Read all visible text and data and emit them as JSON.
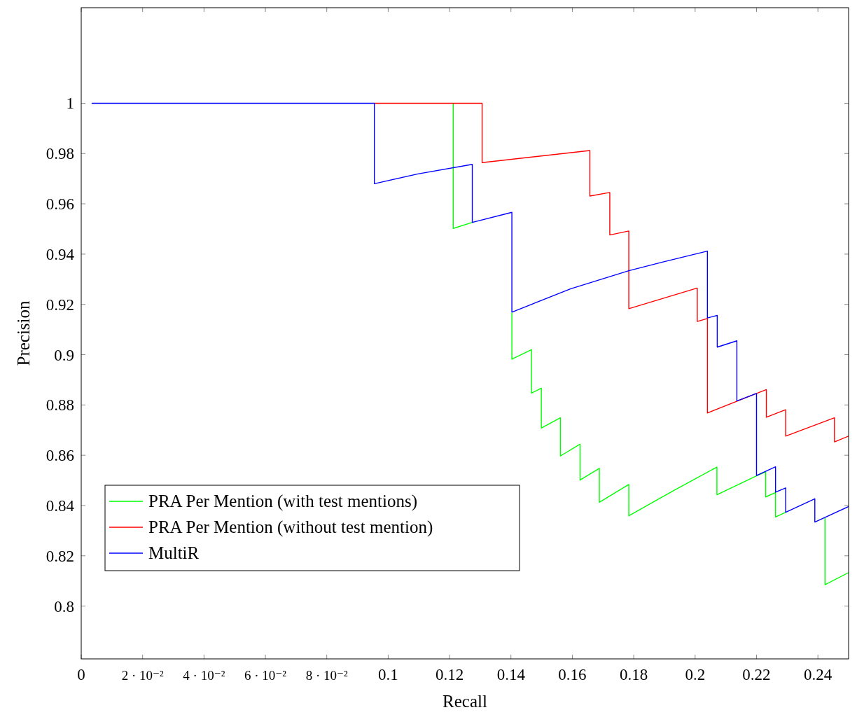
{
  "chart_data": {
    "type": "line",
    "xlabel": "Recall",
    "ylabel": "Precision",
    "xlim": [
      0,
      0.25
    ],
    "ylim": [
      0.779,
      1.038
    ],
    "xticks": [
      0,
      {
        "value": 0.02,
        "label": "2 · 10⁻²"
      },
      {
        "value": 0.04,
        "label": "4 · 10⁻²"
      },
      {
        "value": 0.06,
        "label": "6 · 10⁻²"
      },
      {
        "value": 0.08,
        "label": "8 · 10⁻²"
      },
      0.1,
      0.12,
      0.14,
      0.16,
      0.18,
      0.2,
      0.22,
      0.24
    ],
    "yticks": [
      0.8,
      0.82,
      0.84,
      0.86,
      0.88,
      0.9,
      0.92,
      0.94,
      0.96,
      0.98,
      1
    ],
    "grid": false,
    "legend": "bottom left",
    "marker": "none",
    "line_style": "solid",
    "series": [
      {
        "name": "PRA Per Mention (with test mentions)",
        "color": "#00ff00",
        "x": [
          0.1212,
          0.1212,
          0.1274,
          null,
          0.1403,
          0.1403,
          0.1467,
          0.1467,
          0.1499,
          0.1499,
          0.1561,
          0.1561,
          0.1625,
          0.1625,
          0.1688,
          0.1688,
          0.1784,
          0.1784,
          0.1928,
          0.2071,
          0.2071,
          0.22,
          0.223,
          0.223,
          0.2262,
          0.2262,
          0.2295,
          null,
          null,
          0.2423,
          0.2423,
          0.25
        ],
        "values": [
          1,
          0.9502,
          0.9526,
          null,
          0.9167,
          0.8982,
          0.902,
          0.8847,
          0.8867,
          0.8708,
          0.8749,
          0.8597,
          0.8644,
          0.8501,
          0.8548,
          0.8413,
          0.8484,
          0.8359,
          0.8458,
          0.8553,
          0.8443,
          0.8518,
          0.8534,
          0.8434,
          0.8452,
          0.8354,
          0.8373,
          null,
          null,
          0.8351,
          0.8085,
          0.8133
        ]
      },
      {
        "name": "PRA Per Mention (without test mention)",
        "color": "#ff0000",
        "x": [
          0.0955,
          0.1306,
          0.1306,
          0.1657,
          0.1657,
          0.1722,
          0.1722,
          0.1784,
          0.1784,
          0.2007,
          0.2007,
          0.204,
          0.204,
          0.2232,
          0.2232,
          0.2295,
          0.2295,
          0.2454,
          0.2454,
          0.25
        ],
        "values": [
          1,
          1,
          0.9764,
          0.9812,
          0.9631,
          0.9645,
          0.9476,
          0.9492,
          0.9183,
          0.9265,
          0.9132,
          0.9144,
          0.8768,
          0.8861,
          0.8751,
          0.8781,
          0.8676,
          0.8749,
          0.8653,
          0.8676
        ]
      },
      {
        "name": "MultiR",
        "color": "#0000ff",
        "x": [
          0.0034,
          0.0955,
          0.0955,
          0.1097,
          0.1274,
          0.1274,
          0.1403,
          0.1403,
          0.1595,
          0.1784,
          0.19,
          0.204,
          0.204,
          0.2072,
          0.2072,
          0.2136,
          0.2136,
          0.22,
          0.22,
          0.2262,
          0.2262,
          0.2295,
          0.2295,
          0.239,
          0.239,
          0.25
        ],
        "values": [
          1,
          1,
          0.968,
          0.9719,
          0.9757,
          0.9526,
          0.9566,
          0.9169,
          0.9262,
          0.9334,
          0.937,
          0.9412,
          0.9146,
          0.9156,
          0.903,
          0.9055,
          0.8816,
          0.8846,
          0.8519,
          0.8554,
          0.8453,
          0.847,
          0.8373,
          0.8427,
          0.8334,
          0.8396
        ]
      }
    ]
  }
}
